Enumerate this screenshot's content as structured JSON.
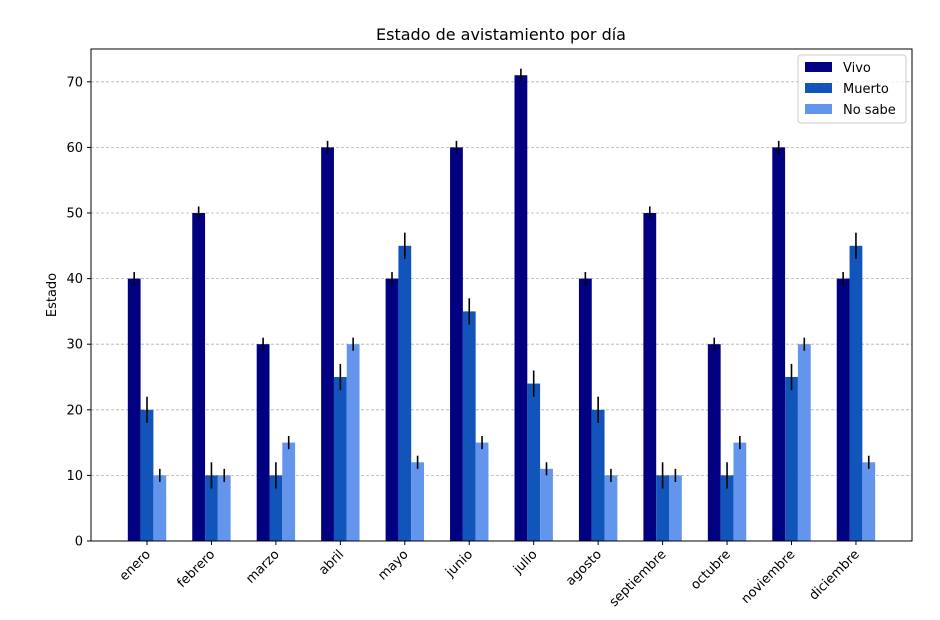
{
  "chart_data": {
    "type": "bar",
    "title": "Estado de avistamiento por día",
    "xlabel": "",
    "ylabel": "Estado",
    "ylim": [
      0,
      75
    ],
    "yticks": [
      0,
      10,
      20,
      30,
      40,
      50,
      60,
      70
    ],
    "grid": "y, dashed",
    "legend_position": "top-right",
    "categories": [
      "enero",
      "febrero",
      "marzo",
      "abril",
      "mayo",
      "junio",
      "julio",
      "agosto",
      "septiembre",
      "octubre",
      "noviembre",
      "diciembre"
    ],
    "series": [
      {
        "name": "Vivo",
        "color": "#000080",
        "values": [
          40,
          50,
          30,
          60,
          40,
          60,
          71,
          40,
          50,
          30,
          60,
          40
        ],
        "errors": [
          1,
          1,
          1,
          1,
          1,
          1,
          1,
          1,
          1,
          1,
          1,
          1
        ]
      },
      {
        "name": "Muerto",
        "color": "#1155bb",
        "values": [
          20,
          10,
          10,
          25,
          45,
          35,
          24,
          20,
          10,
          10,
          25,
          45
        ],
        "errors": [
          2,
          2,
          2,
          2,
          2,
          2,
          2,
          2,
          2,
          2,
          2,
          2
        ]
      },
      {
        "name": "No sabe",
        "color": "#6495ed",
        "values": [
          10,
          10,
          15,
          30,
          12,
          15,
          11,
          10,
          10,
          15,
          30,
          12
        ],
        "errors": [
          1,
          1,
          1,
          1,
          1,
          1,
          1,
          1,
          1,
          1,
          1,
          1
        ]
      }
    ]
  }
}
